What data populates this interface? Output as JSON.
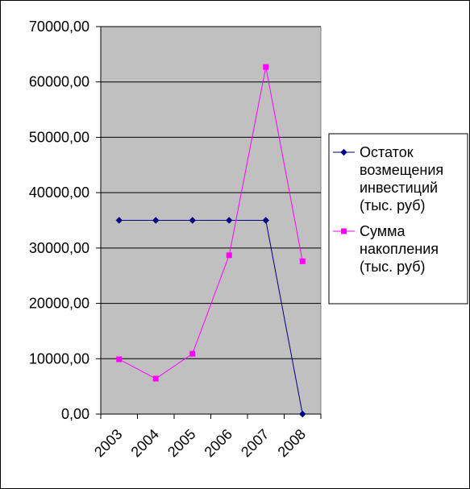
{
  "chart_data": {
    "type": "line",
    "categories": [
      "2003",
      "2004",
      "2005",
      "2006",
      "2007",
      "2008"
    ],
    "ylim": [
      0,
      70000
    ],
    "yticks": [
      0,
      10000,
      20000,
      30000,
      40000,
      50000,
      60000,
      70000
    ],
    "ytick_labels": [
      "0,00",
      "10000,00",
      "20000,00",
      "30000,00",
      "40000,00",
      "50000,00",
      "60000,00",
      "70000,00"
    ],
    "grid": "horizontal",
    "legend_position": "right",
    "plot_background": "#c0c0c0",
    "series": [
      {
        "name_lines": [
          "Остаток",
          "возмещения",
          "инвестиций",
          "(тыс. руб)"
        ],
        "values": [
          35000,
          35000,
          35000,
          35000,
          35000,
          0
        ],
        "color": "#000080",
        "marker": "diamond"
      },
      {
        "name_lines": [
          "Сумма",
          "накопления",
          "(тыс. руб)"
        ],
        "values": [
          9900,
          6400,
          10900,
          28700,
          62700,
          27600
        ],
        "color": "#ff00ff",
        "marker": "square"
      }
    ]
  }
}
